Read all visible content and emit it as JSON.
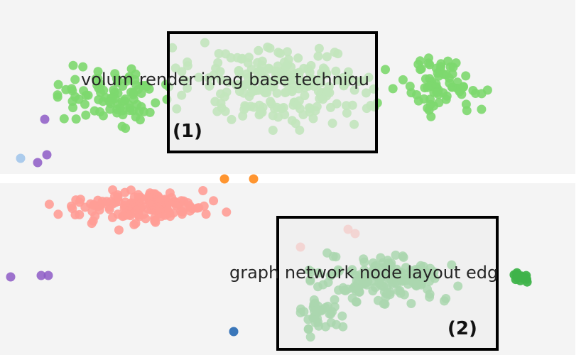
{
  "clusters": [
    {
      "label": "volum render imag base techniqu",
      "color": "#7dd86e"
    },
    {
      "label": "",
      "color": "#ff9d96"
    },
    {
      "label": "graph network node layout edg",
      "color": "#3fb34a"
    }
  ],
  "callouts": [
    {
      "label": "(1)"
    },
    {
      "label": "(2)"
    }
  ],
  "point_colors": {
    "green": "#7dd86e",
    "salmon": "#ff9d96",
    "dark_green": "#3fb34a",
    "purple": "#8d5ac6",
    "orange": "#ff8a1a",
    "blue": "#2f6fb5",
    "light_blue": "#9ec3ea"
  }
}
